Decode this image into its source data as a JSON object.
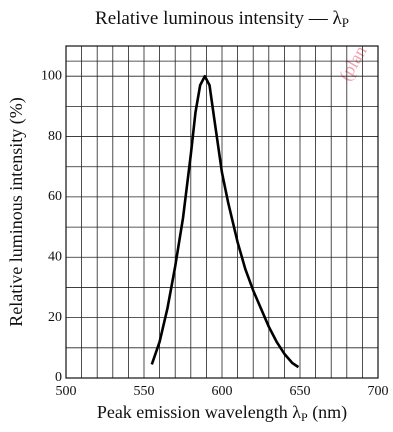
{
  "chart_data": {
    "type": "line",
    "title": "Relative luminous intensity — λ",
    "title_sub": "P",
    "x_label": "Peak emission wavelength λ",
    "x_label_sub": "P",
    "x_label_unit": " (nm)",
    "y_label": "Relative luminous intensity  (%)",
    "watermark": "(plan",
    "xlim": [
      500,
      700
    ],
    "xticks": [
      500,
      550,
      600,
      650,
      700
    ],
    "ylim": [
      0,
      110
    ],
    "yticks": [
      0,
      20,
      40,
      60,
      80,
      100
    ],
    "grid": true,
    "series": [
      {
        "name": "Relative luminous intensity",
        "color": "#000000",
        "x": [
          555,
          560,
          565,
          570,
          575,
          580,
          583,
          586,
          589,
          592,
          595,
          600,
          604,
          610,
          615,
          620,
          625,
          630,
          635,
          640,
          645,
          649
        ],
        "values": [
          4.5,
          12,
          23,
          37,
          53,
          74,
          88,
          97,
          100,
          97,
          86,
          68,
          58,
          45,
          36,
          29,
          23,
          17,
          12,
          8,
          5,
          3.6
        ]
      }
    ]
  }
}
